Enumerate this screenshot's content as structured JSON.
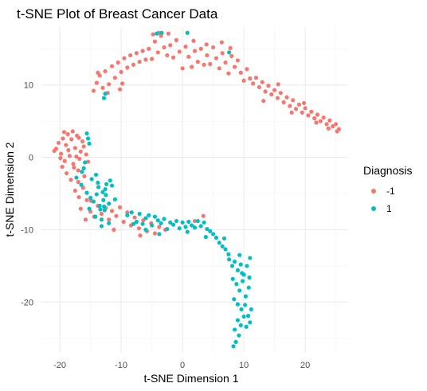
{
  "chart_data": {
    "type": "scatter",
    "title": "t-SNE Plot of Breast Cancer Data",
    "xlabel": "t-SNE Dimension 1",
    "ylabel": "t-SNE Dimension 2",
    "xlim": [
      -23,
      27
    ],
    "ylim": [
      -27,
      18
    ],
    "xticks": [
      -20,
      -10,
      0,
      10,
      20
    ],
    "yticks": [
      -20,
      -10,
      0,
      10
    ],
    "grid": true,
    "legend": {
      "title": "Diagnosis",
      "position": "right"
    },
    "series": [
      {
        "name": "-1",
        "color": "#F8766D",
        "points": [
          [
            -20.6,
            1.2
          ],
          [
            -20.2,
            2.0
          ],
          [
            -19.8,
            0.5
          ],
          [
            -19.5,
            2.6
          ],
          [
            -19.2,
            -0.5
          ],
          [
            -19.6,
            -1.3
          ],
          [
            -19.0,
            1.7
          ],
          [
            -18.7,
            3.2
          ],
          [
            -18.4,
            0.2
          ],
          [
            -18.9,
            -2.2
          ],
          [
            -18.1,
            2.5
          ],
          [
            -17.8,
            -0.9
          ],
          [
            -17.5,
            1.3
          ],
          [
            -17.2,
            3.0
          ],
          [
            -17.0,
            -1.8
          ],
          [
            -16.6,
            0.8
          ],
          [
            -16.3,
            2.2
          ],
          [
            -18.2,
            -3.1
          ],
          [
            -17.7,
            -1.4
          ],
          [
            -16.8,
            -0.2
          ],
          [
            -19.9,
            -0.1
          ],
          [
            -18.6,
            1.0
          ],
          [
            -17.3,
            0.1
          ],
          [
            -16.1,
            1.5
          ],
          [
            -15.7,
            0.4
          ],
          [
            -15.4,
            -0.6
          ],
          [
            -20.9,
            0.9
          ],
          [
            -19.3,
            3.5
          ],
          [
            -17.9,
            3.6
          ],
          [
            -16.9,
            2.7
          ],
          [
            -17.5,
            -4.6
          ],
          [
            -16.9,
            -5.5
          ],
          [
            -16.2,
            -4.2
          ],
          [
            -15.6,
            -5.9
          ],
          [
            -15.0,
            -7.5
          ],
          [
            -14.4,
            -8.2
          ],
          [
            -13.8,
            -6.7
          ],
          [
            -13.2,
            -7.8
          ],
          [
            -12.5,
            -7.0
          ],
          [
            -12.0,
            -8.6
          ],
          [
            -11.5,
            -7.4
          ],
          [
            -10.8,
            -8.1
          ],
          [
            -10.2,
            -6.9
          ],
          [
            -9.6,
            -8.9
          ],
          [
            -9.0,
            -7.6
          ],
          [
            -8.4,
            -9.4
          ],
          [
            -7.8,
            -8.3
          ],
          [
            -7.1,
            -9.8
          ],
          [
            -6.4,
            -8.7
          ],
          [
            -5.8,
            -10.2
          ],
          [
            -5.1,
            -9.1
          ],
          [
            -4.5,
            -10.5
          ],
          [
            -3.8,
            -9.6
          ],
          [
            -16.6,
            -7.1
          ],
          [
            -15.8,
            -8.6
          ],
          [
            -14.9,
            -6.0
          ],
          [
            -17.0,
            -3.4
          ],
          [
            -16.0,
            -2.6
          ],
          [
            -11.2,
            -10.0
          ],
          [
            -6.9,
            -10.8
          ],
          [
            -2.8,
            -10.0
          ],
          [
            2.0,
            -8.8
          ],
          [
            3.4,
            -8.1
          ],
          [
            -14.5,
            9.2
          ],
          [
            -14.0,
            10.3
          ],
          [
            -13.5,
            11.3
          ],
          [
            -13.0,
            9.6
          ],
          [
            -12.6,
            11.9
          ],
          [
            -12.0,
            10.1
          ],
          [
            -11.5,
            12.6
          ],
          [
            -11.0,
            11.0
          ],
          [
            -10.5,
            13.1
          ],
          [
            -10.0,
            11.8
          ],
          [
            -9.5,
            13.7
          ],
          [
            -9.0,
            12.4
          ],
          [
            -8.5,
            14.1
          ],
          [
            -8.0,
            12.8
          ],
          [
            -7.5,
            14.4
          ],
          [
            -7.0,
            13.2
          ],
          [
            -6.5,
            14.7
          ],
          [
            -6.0,
            13.5
          ],
          [
            -5.5,
            15.0
          ],
          [
            -5.0,
            13.6
          ],
          [
            -4.5,
            16.0
          ],
          [
            -4.0,
            14.5
          ],
          [
            -3.5,
            16.8
          ],
          [
            -3.0,
            15.2
          ],
          [
            -2.5,
            14.1
          ],
          [
            -2.0,
            15.5
          ],
          [
            -1.5,
            13.8
          ],
          [
            -1.0,
            16.2
          ],
          [
            -0.5,
            14.6
          ],
          [
            0.0,
            12.3
          ],
          [
            0.5,
            15.3
          ],
          [
            1.0,
            13.9
          ],
          [
            1.5,
            12.5
          ],
          [
            2.0,
            14.7
          ],
          [
            2.5,
            13.2
          ],
          [
            3.0,
            15.0
          ],
          [
            3.5,
            12.8
          ],
          [
            4.0,
            14.1
          ],
          [
            4.5,
            12.9
          ],
          [
            5.0,
            15.2
          ],
          [
            5.5,
            13.7
          ],
          [
            6.0,
            12.3
          ],
          [
            6.5,
            14.4
          ],
          [
            7.0,
            13.1
          ],
          [
            7.5,
            11.6
          ],
          [
            8.0,
            14.0
          ],
          [
            8.5,
            12.5
          ],
          [
            9.0,
            13.4
          ],
          [
            9.5,
            11.7
          ],
          [
            10.0,
            10.6
          ],
          [
            10.5,
            12.2
          ],
          [
            11.0,
            10.9
          ],
          [
            -13.8,
            11.7
          ],
          [
            -12.2,
            8.9
          ],
          [
            -10.2,
            9.4
          ],
          [
            -9.8,
            10.2
          ],
          [
            -4.8,
            17.0
          ],
          [
            -3.9,
            17.2
          ],
          [
            -2.3,
            17.1
          ],
          [
            1.8,
            16.1
          ],
          [
            3.9,
            15.6
          ],
          [
            6.4,
            15.9
          ],
          [
            7.8,
            15.1
          ],
          [
            11.5,
            10.2
          ],
          [
            12.0,
            11.0
          ],
          [
            12.5,
            9.7
          ],
          [
            13.0,
            10.4
          ],
          [
            13.5,
            9.1
          ],
          [
            14.0,
            9.9
          ],
          [
            14.5,
            8.7
          ],
          [
            15.0,
            9.3
          ],
          [
            15.5,
            8.2
          ],
          [
            16.0,
            8.9
          ],
          [
            16.5,
            7.6
          ],
          [
            17.0,
            8.3
          ],
          [
            17.5,
            7.1
          ],
          [
            18.0,
            7.9
          ],
          [
            18.5,
            6.7
          ],
          [
            19.0,
            7.3
          ],
          [
            19.5,
            6.2
          ],
          [
            20.0,
            6.8
          ],
          [
            20.5,
            5.8
          ],
          [
            21.0,
            6.3
          ],
          [
            21.5,
            5.4
          ],
          [
            22.0,
            5.9
          ],
          [
            22.5,
            5.0
          ],
          [
            23.0,
            5.5
          ],
          [
            23.5,
            4.6
          ],
          [
            24.0,
            5.1
          ],
          [
            24.5,
            4.3
          ],
          [
            25.0,
            4.6
          ],
          [
            25.5,
            3.9
          ],
          [
            13.2,
            7.8
          ],
          [
            15.6,
            10.1
          ],
          [
            17.8,
            6.2
          ],
          [
            19.8,
            7.5
          ],
          [
            21.8,
            4.8
          ],
          [
            23.8,
            4.0
          ],
          [
            25.2,
            3.6
          ]
        ]
      },
      {
        "name": "1",
        "color": "#00BFC4",
        "points": [
          [
            -15.6,
            3.3
          ],
          [
            -15.4,
            2.6
          ],
          [
            -15.2,
            1.9
          ],
          [
            -15.9,
            -0.7
          ],
          [
            -16.4,
            -2.0
          ],
          [
            -17.3,
            -2.8
          ],
          [
            -16.1,
            -1.5
          ],
          [
            -16.5,
            -3.8
          ],
          [
            -15.6,
            -4.9
          ],
          [
            -15.0,
            -5.6
          ],
          [
            -14.5,
            -6.1
          ],
          [
            -14.0,
            -5.1
          ],
          [
            -13.5,
            -6.7
          ],
          [
            -13.0,
            -4.8
          ],
          [
            -12.5,
            -5.2
          ],
          [
            -12.0,
            -6.4
          ],
          [
            -11.5,
            -3.9
          ],
          [
            -11.0,
            -5.8
          ],
          [
            -13.2,
            -8.6
          ],
          [
            -12.7,
            -7.3
          ],
          [
            -13.8,
            -3.5
          ],
          [
            -11.8,
            -3.2
          ],
          [
            -13.2,
            -9.5
          ],
          [
            -12.0,
            -9.1
          ],
          [
            -15.2,
            -7.1
          ],
          [
            -14.2,
            -8.2
          ],
          [
            -13.7,
            -4.1
          ],
          [
            -13.4,
            -7.2
          ],
          [
            -12.9,
            -5.9
          ],
          [
            -12.4,
            -3.7
          ],
          [
            -12.6,
            -4.4
          ],
          [
            -12.8,
            -6.8
          ],
          [
            -14.8,
            -3.0
          ],
          [
            -14.1,
            -2.4
          ],
          [
            -9.0,
            -8.0
          ],
          [
            -8.3,
            -7.6
          ],
          [
            -7.5,
            -8.9
          ],
          [
            -7.0,
            -7.8
          ],
          [
            -6.5,
            -9.2
          ],
          [
            -6.0,
            -8.4
          ],
          [
            -5.5,
            -8.0
          ],
          [
            -5.0,
            -9.4
          ],
          [
            -4.5,
            -8.2
          ],
          [
            -4.0,
            -8.7
          ],
          [
            -3.5,
            -9.1
          ],
          [
            -3.0,
            -8.5
          ],
          [
            -2.5,
            -9.9
          ],
          [
            -2.0,
            -9.0
          ],
          [
            -1.5,
            -9.3
          ],
          [
            -1.0,
            -8.8
          ],
          [
            -0.5,
            -9.8
          ],
          [
            0.0,
            -9.0
          ],
          [
            0.5,
            -9.6
          ],
          [
            1.0,
            -8.9
          ],
          [
            1.5,
            -9.4
          ],
          [
            2.0,
            -9.7
          ],
          [
            2.5,
            -8.8
          ],
          [
            3.0,
            -9.5
          ],
          [
            3.5,
            -9.0
          ],
          [
            4.0,
            -9.9
          ],
          [
            4.5,
            -10.2
          ],
          [
            5.0,
            -10.6
          ],
          [
            5.5,
            -11.1
          ],
          [
            6.0,
            -11.8
          ],
          [
            6.5,
            -12.3
          ],
          [
            7.0,
            -12.7
          ],
          [
            7.5,
            -13.4
          ],
          [
            -8.0,
            -9.2
          ],
          [
            -6.0,
            -10.0
          ],
          [
            -3.8,
            -10.6
          ],
          [
            0.8,
            -10.3
          ],
          [
            3.8,
            -11.0
          ],
          [
            6.8,
            -11.2
          ],
          [
            7.6,
            -14.1
          ],
          [
            8.1,
            -15.0
          ],
          [
            8.5,
            -14.4
          ],
          [
            9.0,
            -15.6
          ],
          [
            9.5,
            -14.8
          ],
          [
            10.0,
            -16.2
          ],
          [
            10.5,
            -15.0
          ],
          [
            11.0,
            -13.9
          ],
          [
            8.2,
            -16.8
          ],
          [
            8.8,
            -17.5
          ],
          [
            9.3,
            -18.4
          ],
          [
            9.8,
            -17.1
          ],
          [
            10.3,
            -19.2
          ],
          [
            10.8,
            -18.0
          ],
          [
            8.4,
            -19.6
          ],
          [
            9.0,
            -20.3
          ],
          [
            9.6,
            -21.0
          ],
          [
            10.2,
            -20.4
          ],
          [
            10.7,
            -21.9
          ],
          [
            11.2,
            -21.0
          ],
          [
            9.0,
            -22.5
          ],
          [
            9.5,
            -23.2
          ],
          [
            10.0,
            -22.0
          ],
          [
            8.5,
            -23.8
          ],
          [
            9.2,
            -24.6
          ],
          [
            8.7,
            -25.5
          ],
          [
            8.3,
            -26.1
          ],
          [
            10.4,
            -23.4
          ],
          [
            11.0,
            -22.8
          ],
          [
            9.7,
            -16.0
          ],
          [
            10.9,
            -16.6
          ],
          [
            9.3,
            -13.5
          ],
          [
            -4.2,
            17.1
          ],
          [
            -3.4,
            17.2
          ],
          [
            0.8,
            17.2
          ],
          [
            7.6,
            14.5
          ],
          [
            -12.8,
            8.2
          ],
          [
            -12.6,
            8.8
          ]
        ]
      }
    ]
  }
}
